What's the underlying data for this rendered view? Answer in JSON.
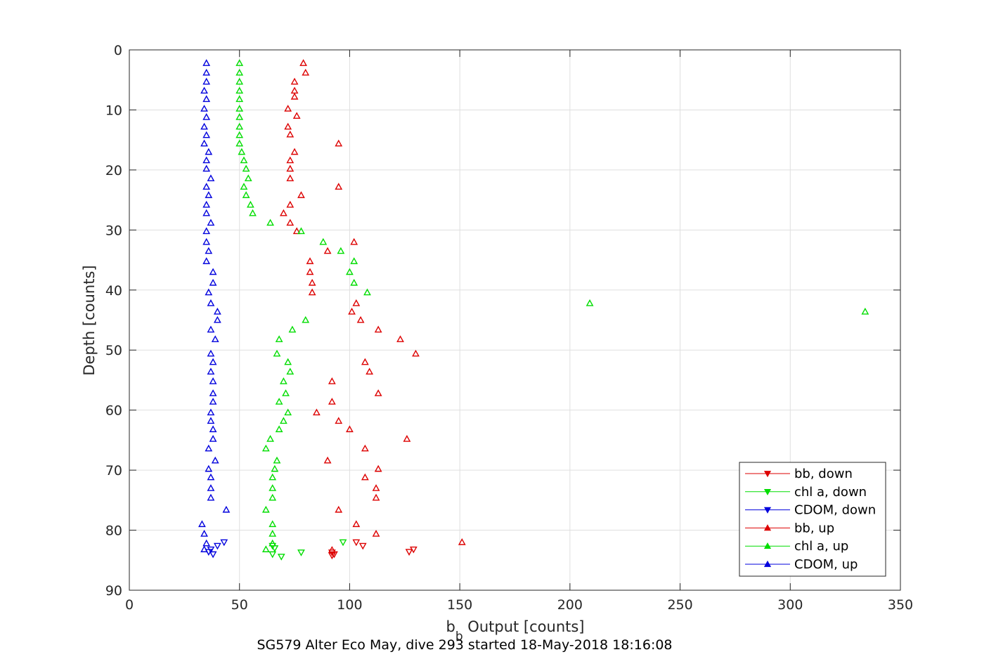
{
  "chart_data": {
    "type": "scatter",
    "title": "",
    "caption": "SG579 Alter Eco May, dive 293 started 18-May-2018 18:16:08",
    "xlabel_main": "b",
    "xlabel_sub": "b",
    "xlabel_rest": " Output [counts]",
    "ylabel": "Depth [counts]",
    "xlim": [
      0,
      350
    ],
    "ylim": [
      0,
      90
    ],
    "y_reversed": true,
    "grid": true,
    "legend_position": "bottom-right",
    "x_ticks": [
      0,
      50,
      100,
      150,
      200,
      250,
      300,
      350
    ],
    "y_ticks": [
      0,
      10,
      20,
      30,
      40,
      50,
      60,
      70,
      80,
      90
    ],
    "series": [
      {
        "name": "bb, down",
        "marker": "triangle-down",
        "color": "#dd0000",
        "points": [
          [
            92,
            84.2
          ],
          [
            93,
            84
          ],
          [
            92,
            83.7
          ],
          [
            127,
            83.6
          ],
          [
            129,
            83.2
          ],
          [
            106,
            82.6
          ],
          [
            103,
            82
          ]
        ]
      },
      {
        "name": "chl a, down",
        "marker": "triangle-down",
        "color": "#00dd00",
        "points": [
          [
            65,
            84
          ],
          [
            69,
            84.4
          ],
          [
            78,
            83.7
          ],
          [
            66,
            83
          ],
          [
            65,
            82.6
          ],
          [
            97,
            82
          ]
        ]
      },
      {
        "name": "CDOM, down",
        "marker": "triangle-down",
        "color": "#0000dd",
        "points": [
          [
            38,
            84
          ],
          [
            36,
            83.6
          ],
          [
            37,
            83.2
          ],
          [
            40,
            82.6
          ],
          [
            43,
            82
          ]
        ]
      },
      {
        "name": "bb, up",
        "marker": "triangle-up",
        "color": "#dd0000",
        "points": [
          [
            79,
            2.2
          ],
          [
            80,
            3.8
          ],
          [
            75,
            5.3
          ],
          [
            75,
            6.8
          ],
          [
            75,
            7.8
          ],
          [
            72,
            9.8
          ],
          [
            76,
            11
          ],
          [
            72,
            12.8
          ],
          [
            73,
            14.1
          ],
          [
            95,
            15.6
          ],
          [
            75,
            17
          ],
          [
            73,
            18.4
          ],
          [
            73,
            19.8
          ],
          [
            73,
            21.4
          ],
          [
            95,
            22.8
          ],
          [
            78,
            24.2
          ],
          [
            73,
            25.8
          ],
          [
            70,
            27.2
          ],
          [
            73,
            28.8
          ],
          [
            76,
            30.2
          ],
          [
            102,
            32
          ],
          [
            90,
            33.5
          ],
          [
            82,
            35.2
          ],
          [
            82,
            37
          ],
          [
            83,
            38.8
          ],
          [
            83,
            40.4
          ],
          [
            103,
            42.2
          ],
          [
            101,
            43.6
          ],
          [
            105,
            45
          ],
          [
            113,
            46.6
          ],
          [
            123,
            48.2
          ],
          [
            130,
            50.6
          ],
          [
            107,
            52
          ],
          [
            109,
            53.6
          ],
          [
            92,
            55.2
          ],
          [
            113,
            57.2
          ],
          [
            92,
            58.6
          ],
          [
            85,
            60.4
          ],
          [
            95,
            61.8
          ],
          [
            100,
            63.2
          ],
          [
            126,
            64.8
          ],
          [
            107,
            66.4
          ],
          [
            90,
            68.4
          ],
          [
            113,
            69.8
          ],
          [
            107,
            71.2
          ],
          [
            112,
            73
          ],
          [
            112,
            74.6
          ],
          [
            95,
            76.6
          ],
          [
            103,
            79
          ],
          [
            112,
            80.6
          ],
          [
            151,
            82
          ],
          [
            92,
            83.3
          ]
        ]
      },
      {
        "name": "chl a, up",
        "marker": "triangle-up",
        "color": "#00dd00",
        "points": [
          [
            50,
            2.2
          ],
          [
            50,
            3.8
          ],
          [
            50,
            5.3
          ],
          [
            50,
            6.8
          ],
          [
            50,
            8.2
          ],
          [
            50,
            9.8
          ],
          [
            50,
            11.2
          ],
          [
            50,
            12.8
          ],
          [
            50,
            14.2
          ],
          [
            50,
            15.6
          ],
          [
            51,
            17
          ],
          [
            52,
            18.4
          ],
          [
            53,
            19.8
          ],
          [
            54,
            21.4
          ],
          [
            52,
            22.8
          ],
          [
            53,
            24.2
          ],
          [
            55,
            25.8
          ],
          [
            56,
            27.2
          ],
          [
            64,
            28.8
          ],
          [
            78,
            30.2
          ],
          [
            88,
            32
          ],
          [
            96,
            33.5
          ],
          [
            102,
            35.2
          ],
          [
            100,
            37
          ],
          [
            102,
            38.8
          ],
          [
            108,
            40.4
          ],
          [
            209,
            42.2
          ],
          [
            334,
            43.6
          ],
          [
            80,
            45
          ],
          [
            74,
            46.6
          ],
          [
            68,
            48.2
          ],
          [
            67,
            50.6
          ],
          [
            72,
            52
          ],
          [
            73,
            53.6
          ],
          [
            70,
            55.2
          ],
          [
            71,
            57.2
          ],
          [
            68,
            58.6
          ],
          [
            72,
            60.4
          ],
          [
            70,
            61.8
          ],
          [
            68,
            63.2
          ],
          [
            64,
            64.8
          ],
          [
            62,
            66.4
          ],
          [
            67,
            68.4
          ],
          [
            66,
            69.8
          ],
          [
            65,
            71.2
          ],
          [
            65,
            73
          ],
          [
            65,
            74.6
          ],
          [
            62,
            76.6
          ],
          [
            65,
            79
          ],
          [
            65,
            80.6
          ],
          [
            65,
            82.2
          ],
          [
            62,
            83.2
          ]
        ]
      },
      {
        "name": "CDOM, up",
        "marker": "triangle-up",
        "color": "#0000dd",
        "points": [
          [
            35,
            2.2
          ],
          [
            35,
            3.8
          ],
          [
            35,
            5.3
          ],
          [
            34,
            6.8
          ],
          [
            35,
            8.2
          ],
          [
            34,
            9.8
          ],
          [
            35,
            11.2
          ],
          [
            34,
            12.8
          ],
          [
            35,
            14.2
          ],
          [
            34,
            15.6
          ],
          [
            36,
            17
          ],
          [
            35,
            18.4
          ],
          [
            35,
            19.8
          ],
          [
            37,
            21.4
          ],
          [
            35,
            22.8
          ],
          [
            36,
            24.2
          ],
          [
            35,
            25.8
          ],
          [
            35,
            27.2
          ],
          [
            37,
            28.8
          ],
          [
            35,
            30.2
          ],
          [
            35,
            32
          ],
          [
            36,
            33.5
          ],
          [
            35,
            35.2
          ],
          [
            38,
            37
          ],
          [
            38,
            38.8
          ],
          [
            36,
            40.4
          ],
          [
            37,
            42.2
          ],
          [
            40,
            43.6
          ],
          [
            40,
            45
          ],
          [
            37,
            46.6
          ],
          [
            39,
            48.2
          ],
          [
            37,
            50.6
          ],
          [
            38,
            52
          ],
          [
            37,
            53.6
          ],
          [
            38,
            55.2
          ],
          [
            38,
            57.2
          ],
          [
            38,
            58.6
          ],
          [
            37,
            60.4
          ],
          [
            37,
            61.8
          ],
          [
            38,
            63.2
          ],
          [
            38,
            64.8
          ],
          [
            36,
            66.4
          ],
          [
            39,
            68.4
          ],
          [
            36,
            69.8
          ],
          [
            37,
            71.2
          ],
          [
            37,
            73
          ],
          [
            37,
            74.6
          ],
          [
            44,
            76.6
          ],
          [
            33,
            79
          ],
          [
            34,
            80.6
          ],
          [
            35,
            82.2
          ],
          [
            34,
            83.2
          ]
        ]
      }
    ]
  }
}
